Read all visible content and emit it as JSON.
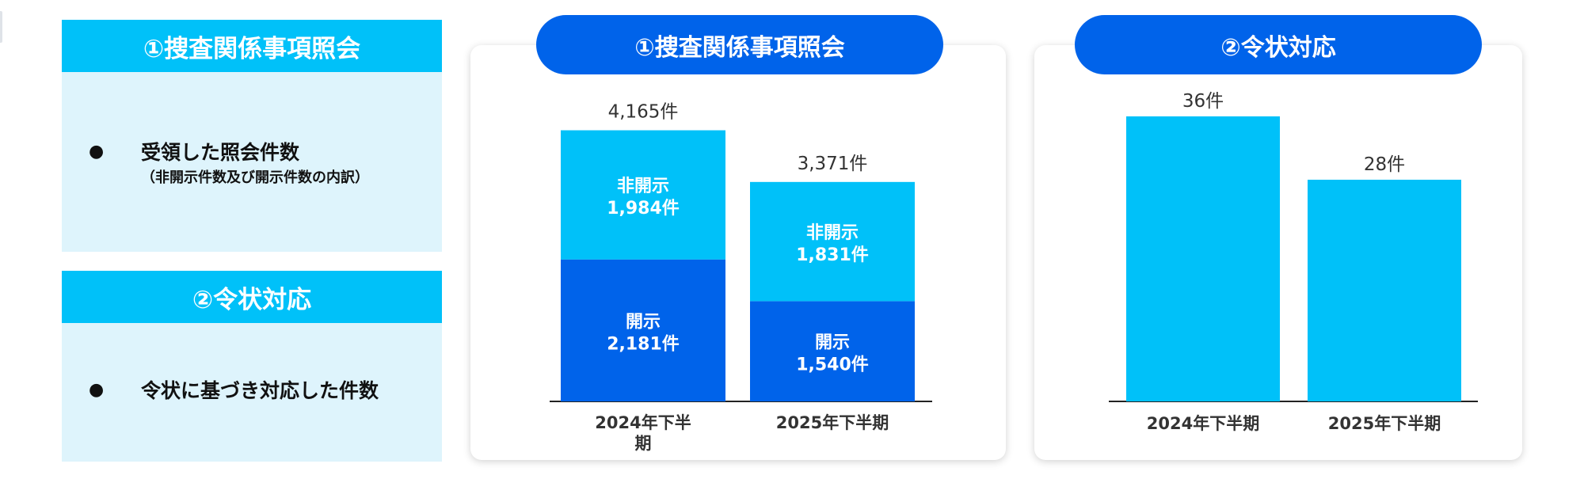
{
  "legend": {
    "section1": {
      "title": "①捜査関係事項照会",
      "item": "受領した照会件数",
      "sub": "（非開示件数及び開示件数の内訳）"
    },
    "section2": {
      "title": "②令状対応",
      "item": "令状に基づき対応した件数"
    },
    "bullet": "●"
  },
  "colors": {
    "dark_blue": "#0063ea",
    "light_blue": "#00c1f9",
    "legend_bg": "#def4fc",
    "text": "#333333"
  },
  "chart_data": [
    {
      "type": "bar",
      "stacked": true,
      "title": "①捜査関係事項照会",
      "categories": [
        "2024年下半期",
        "2025年下半期"
      ],
      "category_display": [
        [
          "2024年下半",
          "期"
        ],
        [
          "2025年下半期"
        ]
      ],
      "series": [
        {
          "name": "開示",
          "values": [
            2181,
            1540
          ],
          "labels": [
            "2,181件",
            "1,540件"
          ],
          "color": "#0063ea"
        },
        {
          "name": "非開示",
          "values": [
            1984,
            1831
          ],
          "labels": [
            "1,984件",
            "1,831件"
          ],
          "color": "#00c1f9"
        }
      ],
      "totals": [
        4165,
        3371
      ],
      "total_labels": [
        "4,165件",
        "3,371件"
      ],
      "ylim": [
        0,
        4500
      ],
      "grid": false
    },
    {
      "type": "bar",
      "title": "②令状対応",
      "categories": [
        "2024年下半期",
        "2025年下半期"
      ],
      "category_display": [
        [
          "2024年下半期"
        ],
        [
          "2025年下半期"
        ]
      ],
      "values": [
        36,
        28
      ],
      "labels": [
        "36件",
        "28件"
      ],
      "color": "#00c1f9",
      "ylim": [
        0,
        40
      ],
      "grid": false
    }
  ]
}
